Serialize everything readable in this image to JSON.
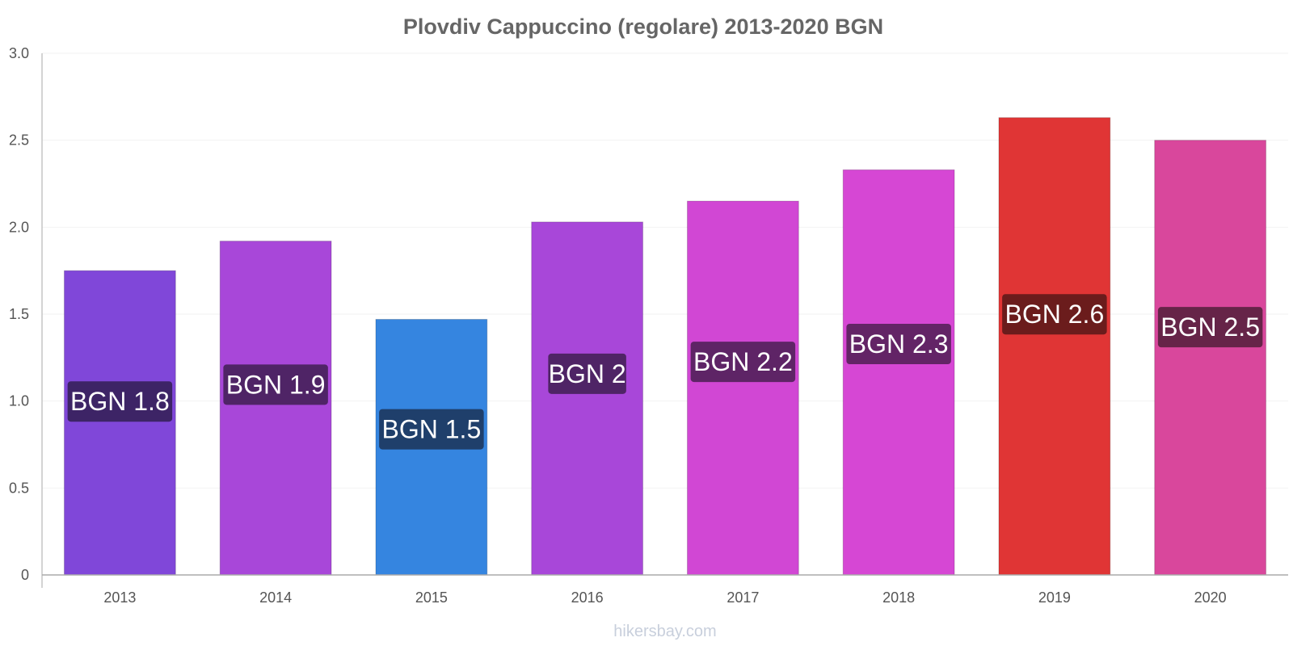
{
  "chart_data": {
    "type": "bar",
    "title": "Plovdiv Cappuccino (regolare) 2013-2020 BGN",
    "xlabel": "",
    "ylabel": "",
    "categories": [
      "2013",
      "2014",
      "2015",
      "2016",
      "2017",
      "2018",
      "2019",
      "2020"
    ],
    "values": [
      1.75,
      1.92,
      1.47,
      2.03,
      2.15,
      2.33,
      2.63,
      2.5
    ],
    "data_labels": [
      "BGN 1.8",
      "BGN 1.9",
      "BGN 1.5",
      "BGN 2",
      "BGN 2.2",
      "BGN 2.3",
      "BGN 2.6",
      "BGN 2.5"
    ],
    "bar_colors": [
      "#8047d9",
      "#a847d9",
      "#3585e0",
      "#a847d9",
      "#d147d4",
      "#d647d4",
      "#e03535",
      "#d9479c"
    ],
    "label_bg_colors": [
      "#3d2466",
      "#4f2466",
      "#1f3f6b",
      "#4f2466",
      "#5e2466",
      "#632466",
      "#6b1c1c",
      "#662448"
    ],
    "yticks": [
      "0",
      "0.5",
      "1.0",
      "1.5",
      "2.0",
      "2.5",
      "3.0"
    ],
    "ylim": [
      0,
      3.0
    ],
    "grid": true,
    "legend": "none"
  },
  "footer": {
    "source": "hikersbay.com"
  }
}
